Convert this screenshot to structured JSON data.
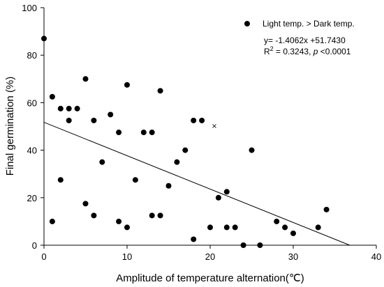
{
  "chart_data": {
    "type": "scatter",
    "xlabel": "Amplitude of temperature alternation(℃)",
    "ylabel": "Final germination (%)",
    "xlim": [
      0,
      40
    ],
    "ylim": [
      0,
      100
    ],
    "xticks": [
      "0",
      "10",
      "20",
      "30",
      "40"
    ],
    "yticks": [
      "0",
      "20",
      "40",
      "60",
      "80",
      "100"
    ],
    "grid": false,
    "legend_position": "top-right",
    "series": [
      {
        "name": "Light temp. > Dark temp.",
        "marker": "filled-circle",
        "color": "#000000",
        "points": [
          [
            0,
            87
          ],
          [
            1,
            62.5
          ],
          [
            1,
            10
          ],
          [
            2,
            57.5
          ],
          [
            2,
            27.5
          ],
          [
            3,
            57.5
          ],
          [
            3,
            52.5
          ],
          [
            4,
            57.5
          ],
          [
            5,
            70
          ],
          [
            5,
            17.5
          ],
          [
            6,
            52.5
          ],
          [
            6,
            12.5
          ],
          [
            7,
            35
          ],
          [
            8,
            55
          ],
          [
            9,
            47.5
          ],
          [
            9,
            10
          ],
          [
            10,
            67.5
          ],
          [
            10,
            7.5
          ],
          [
            11,
            27.5
          ],
          [
            12,
            47.5
          ],
          [
            13,
            47.5
          ],
          [
            13,
            12.5
          ],
          [
            14,
            65
          ],
          [
            14,
            12.5
          ],
          [
            15,
            25
          ],
          [
            16,
            35
          ],
          [
            17,
            40
          ],
          [
            18,
            52.5
          ],
          [
            18,
            2.5
          ],
          [
            19,
            52.5
          ],
          [
            20,
            7.5
          ],
          [
            21,
            20
          ],
          [
            22,
            22.5
          ],
          [
            22,
            7.5
          ],
          [
            23,
            7.5
          ],
          [
            24,
            0
          ],
          [
            25,
            40
          ],
          [
            26,
            0
          ],
          [
            28,
            10
          ],
          [
            29,
            7.5
          ],
          [
            30,
            5
          ],
          [
            33,
            7.5
          ],
          [
            34,
            15
          ]
        ]
      }
    ],
    "outlier_marker": {
      "symbol": "×",
      "point": [
        20.5,
        50.5
      ]
    },
    "regression": {
      "equation": "y= -1.4062x +51.7430",
      "r2_prefix": "R",
      "r2_sup": "2",
      "r2_value": " = 0.3243, ",
      "p_label": "p",
      "p_value": " <0.0001",
      "slope": -1.4062,
      "intercept": 51.743
    }
  }
}
